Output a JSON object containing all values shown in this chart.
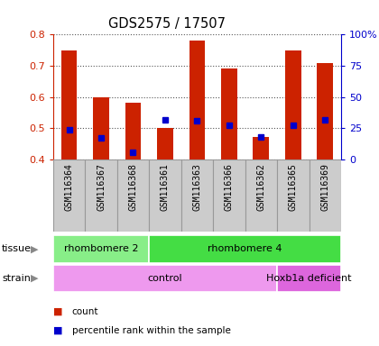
{
  "title": "GDS2575 / 17507",
  "samples": [
    "GSM116364",
    "GSM116367",
    "GSM116368",
    "GSM116361",
    "GSM116363",
    "GSM116366",
    "GSM116362",
    "GSM116365",
    "GSM116369"
  ],
  "bar_bottom": 0.4,
  "bar_tops": [
    0.75,
    0.6,
    0.58,
    0.5,
    0.78,
    0.69,
    0.47,
    0.75,
    0.71
  ],
  "percentile_values": [
    0.495,
    0.468,
    0.423,
    0.527,
    0.523,
    0.51,
    0.472,
    0.51,
    0.525
  ],
  "ylim": [
    0.4,
    0.8
  ],
  "right_ylim": [
    0,
    100
  ],
  "right_yticks": [
    0,
    25,
    50,
    75,
    100
  ],
  "right_yticklabels": [
    "0",
    "25",
    "50",
    "75",
    "100%"
  ],
  "left_yticks": [
    0.4,
    0.5,
    0.6,
    0.7,
    0.8
  ],
  "bar_color": "#cc2200",
  "percentile_color": "#0000cc",
  "tissue_groups": [
    {
      "label": "rhombomere 2",
      "start": 0,
      "end": 3,
      "color": "#88ee88"
    },
    {
      "label": "rhombomere 4",
      "start": 3,
      "end": 9,
      "color": "#44dd44"
    }
  ],
  "strain_groups": [
    {
      "label": "control",
      "start": 0,
      "end": 7,
      "color": "#ee99ee"
    },
    {
      "label": "Hoxb1a deficient",
      "start": 7,
      "end": 9,
      "color": "#dd66dd"
    }
  ],
  "tissue_label": "tissue",
  "strain_label": "strain",
  "legend_items": [
    {
      "color": "#cc2200",
      "label": "count"
    },
    {
      "color": "#0000cc",
      "label": "percentile rank within the sample"
    }
  ],
  "grid_color": "#555555",
  "col_bg": "#cccccc",
  "plot_bg": "#ffffff",
  "border_color": "#999999"
}
